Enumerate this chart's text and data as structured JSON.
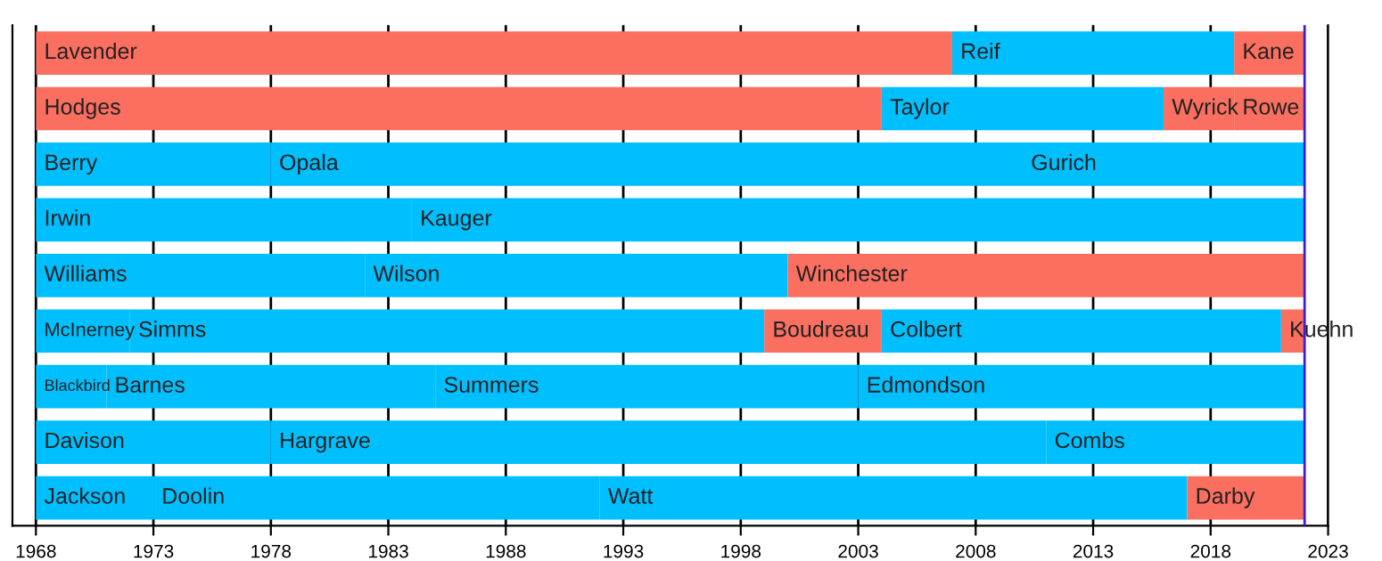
{
  "chart_data": {
    "type": "bar",
    "orientation": "horizontal",
    "categories": [
      null,
      null,
      null,
      null,
      null,
      null,
      null,
      null,
      null
    ],
    "series": [
      {
        "base": [
          1968,
          1968,
          1968,
          1968,
          1968,
          1968,
          1968,
          1968,
          1968
        ],
        "values": [
          39,
          36,
          10,
          16,
          14,
          4,
          3,
          10,
          5
        ],
        "colors": [
          "#fa6f60",
          "#fa6f60",
          "#00bfff",
          "#00bfff",
          "#00bfff",
          "#00bfff",
          "#00bfff",
          "#00bfff",
          "#00bfff"
        ],
        "value_labels": [
          "Lavender",
          "Hodges",
          "Berry",
          "Irwin",
          "Williams",
          "McInerney",
          "Blackbird",
          "Davison",
          "Jackson"
        ]
      },
      {
        "base": [
          2007,
          2004,
          1978,
          1984,
          1982,
          1972,
          1971,
          1978,
          1973
        ],
        "values": [
          12,
          12,
          32,
          38,
          18,
          27,
          14,
          33,
          19
        ],
        "colors": [
          "#00bfff",
          "#00bfff",
          "#00bfff",
          "#00bfff",
          "#00bfff",
          "#00bfff",
          "#00bfff",
          "#00bfff",
          "#00bfff"
        ],
        "value_labels": [
          "Reif",
          "Taylor",
          "Opala",
          "Kauger",
          "Wilson",
          "Simms",
          "Barnes",
          "Hargrave",
          "Doolin"
        ]
      },
      {
        "base": [
          2019,
          2016,
          2010,
          null,
          2000,
          1999,
          1985,
          2011,
          1992
        ],
        "values": [
          3,
          3,
          12,
          null,
          22,
          5,
          18,
          11,
          25
        ],
        "colors": [
          "#fa6f60",
          "#fa6f60",
          "#00bfff",
          null,
          "#fa6f60",
          "#fa6f60",
          "#00bfff",
          "#00bfff",
          "#00bfff"
        ],
        "value_labels": [
          "Kane",
          "Wyrick",
          "Gurich",
          null,
          "Winchester",
          "Boudreau",
          "Summers",
          "Combs",
          "Watt"
        ]
      },
      {
        "base": [
          null,
          2019,
          null,
          null,
          null,
          2004,
          2003,
          null,
          2017
        ],
        "values": [
          null,
          3,
          null,
          null,
          null,
          17,
          19,
          null,
          5
        ],
        "colors": [
          null,
          "#fa6f60",
          null,
          null,
          null,
          "#00bfff",
          "#00bfff",
          null,
          "#fa6f60"
        ],
        "value_labels": [
          null,
          "Rowe",
          null,
          null,
          null,
          "Colbert",
          "Edmondson",
          null,
          "Darby"
        ]
      },
      {
        "base": [
          null,
          null,
          null,
          null,
          null,
          2021,
          null,
          null,
          null
        ],
        "values": [
          null,
          null,
          null,
          null,
          null,
          1,
          null,
          null,
          null
        ],
        "colors": [
          null,
          null,
          null,
          null,
          null,
          "#fa6f60",
          null,
          null,
          null
        ],
        "value_labels": [
          null,
          null,
          null,
          null,
          null,
          "Kuehn",
          null,
          null,
          null
        ]
      }
    ],
    "xlim": [
      1967,
      2023
    ],
    "xticks": [
      1968,
      1973,
      1978,
      1983,
      1988,
      1993,
      1998,
      2003,
      2008,
      2013,
      2018,
      2023
    ],
    "grid": "x",
    "tick_labels": "x",
    "ref_lines": [
      {
        "axis": "x",
        "value": 2022,
        "color": "#3a1fd6"
      }
    ]
  }
}
